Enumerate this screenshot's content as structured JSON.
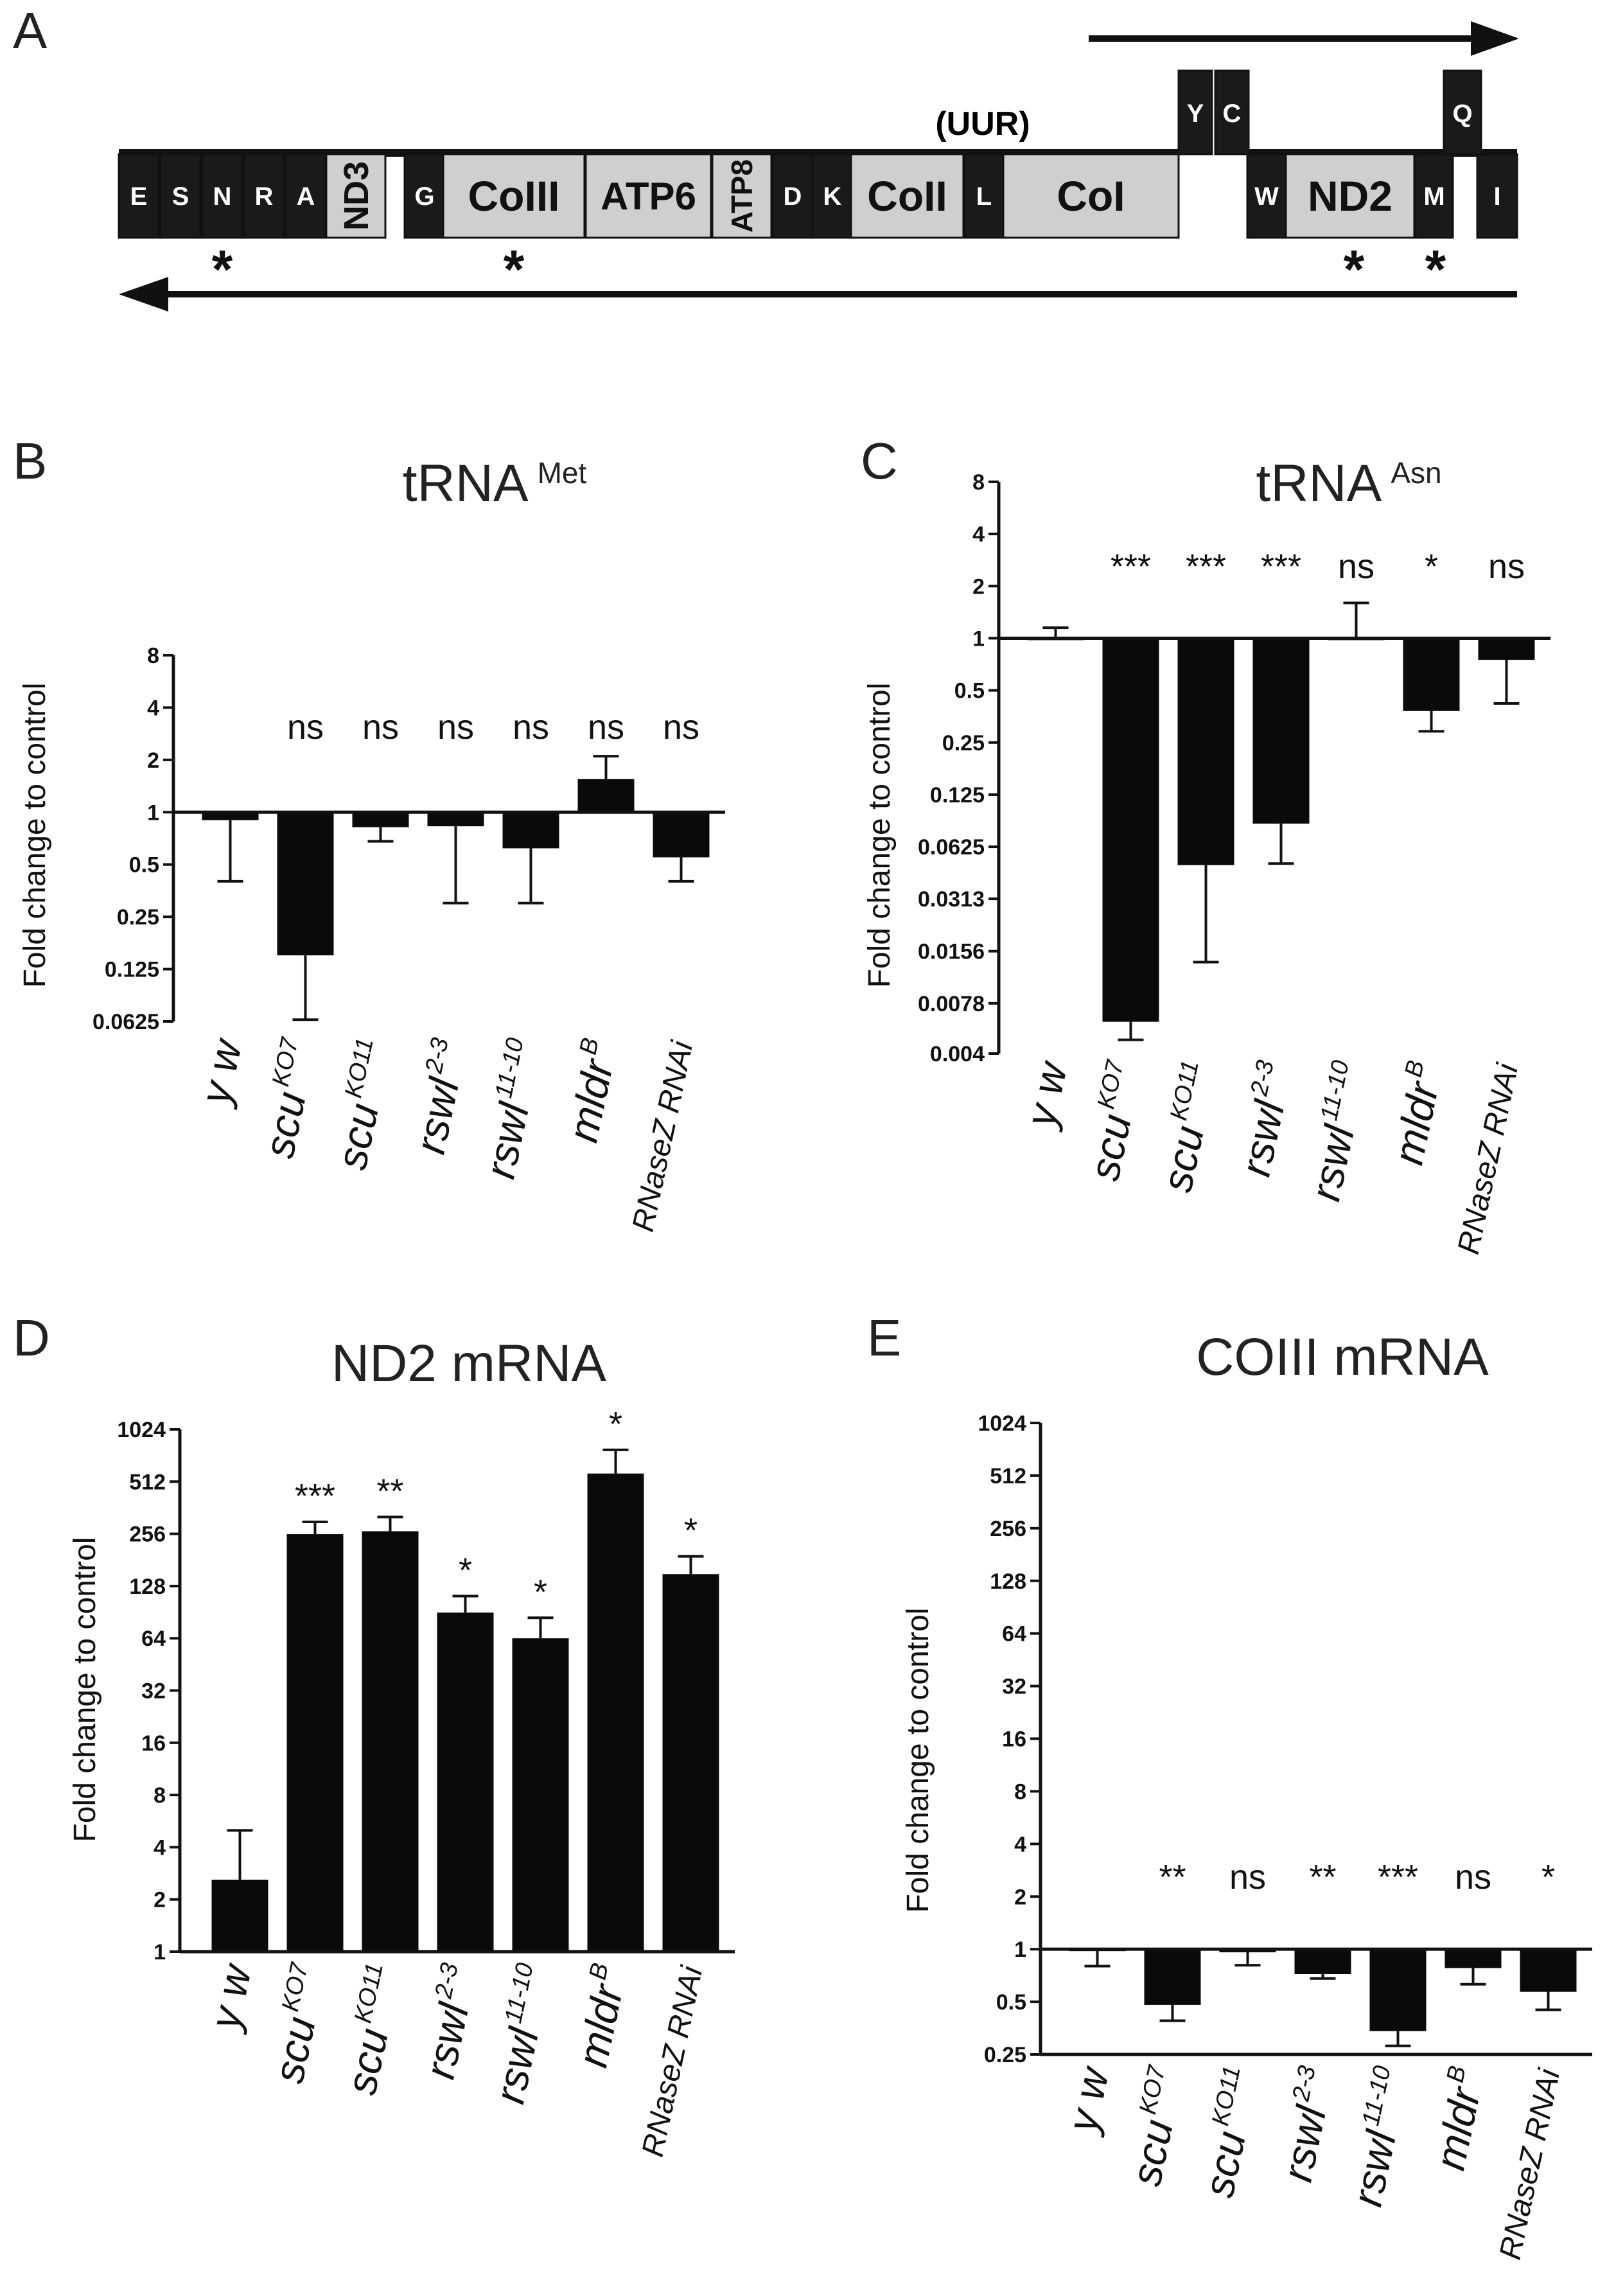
{
  "panel_labels": [
    "A",
    "B",
    "C",
    "D",
    "E"
  ],
  "gene_map": {
    "uur_label": "(UUR)",
    "top_strand_genes": [
      {
        "label": "Y"
      },
      {
        "label": "C"
      },
      {
        "label": "Q"
      }
    ],
    "main_genes": [
      {
        "label": "E",
        "kind": "tRNA"
      },
      {
        "label": "S",
        "kind": "tRNA"
      },
      {
        "label": "N",
        "kind": "tRNA"
      },
      {
        "label": "R",
        "kind": "tRNA"
      },
      {
        "label": "A",
        "kind": "tRNA"
      },
      {
        "label": "ND3",
        "kind": "gene"
      },
      {
        "label": "G",
        "kind": "tRNA"
      },
      {
        "label": "CoIII",
        "kind": "gene"
      },
      {
        "label": "ATP6",
        "kind": "gene"
      },
      {
        "label": "ATP8",
        "kind": "gene"
      },
      {
        "label": "D",
        "kind": "tRNA"
      },
      {
        "label": "K",
        "kind": "tRNA"
      },
      {
        "label": "CoII",
        "kind": "gene"
      },
      {
        "label": "L",
        "kind": "tRNA"
      },
      {
        "label": "CoI",
        "kind": "gene"
      },
      {
        "label": "W",
        "kind": "tRNA"
      },
      {
        "label": "ND2",
        "kind": "gene"
      },
      {
        "label": "M",
        "kind": "tRNA"
      },
      {
        "label": "I",
        "kind": "tRNA"
      }
    ],
    "star_symbol": "*",
    "marked_genes": [
      "N",
      "CoIII",
      "ND2",
      "M"
    ]
  },
  "y_axis_label": "Fold change to control",
  "chart_data": [
    {
      "panel": "B",
      "type": "bar",
      "title": "tRNA",
      "title_sup": "Met",
      "ylabel": "Fold change to control",
      "yscale": "log2",
      "ylim": [
        0.0625,
        8
      ],
      "yticks": [
        "8",
        "4",
        "2",
        "1",
        "0.5",
        "0.25",
        "0.125",
        "0.0625"
      ],
      "categories": [
        "y w",
        "scu KO7",
        "scu KO11",
        "rswl 2-3",
        "rswl 11-10",
        "mldr B",
        "RNaseZ RNAi"
      ],
      "values": [
        0.9,
        0.15,
        0.82,
        0.83,
        0.62,
        1.55,
        0.55
      ],
      "errors": [
        0.4,
        0.064,
        0.68,
        0.3,
        0.3,
        2.1,
        0.4
      ],
      "significance": [
        "",
        "ns",
        "ns",
        "ns",
        "ns",
        "ns",
        "ns"
      ]
    },
    {
      "panel": "C",
      "type": "bar",
      "title": "tRNA",
      "title_sup": "Asn",
      "ylabel": "Fold change to control",
      "yscale": "log2",
      "ylim": [
        0.004,
        8
      ],
      "yticks": [
        "8",
        "4",
        "2",
        "1",
        "0.5",
        "0.25",
        "0.125",
        "0.0625",
        "0.0313",
        "0.0156",
        "0.0078",
        "0.004"
      ],
      "categories": [
        "y w",
        "scu KO7",
        "scu KO11",
        "rswl 2-3",
        "rswl 11-10",
        "mldr B",
        "RNaseZ RNAi"
      ],
      "values": [
        1.0,
        0.0061,
        0.049,
        0.085,
        1.0,
        0.38,
        0.75
      ],
      "errors": [
        1.15,
        0.0048,
        0.0135,
        0.05,
        1.6,
        0.29,
        0.42
      ],
      "significance": [
        "",
        "***",
        "***",
        "***",
        "ns",
        "*",
        "ns"
      ]
    },
    {
      "panel": "D",
      "type": "bar",
      "title": "ND2 mRNA",
      "title_sup": "",
      "ylabel": "Fold change to control",
      "yscale": "log2",
      "ylim": [
        1,
        1024
      ],
      "yticks": [
        "1024",
        "512",
        "256",
        "128",
        "64",
        "32",
        "16",
        "8",
        "4",
        "2",
        "1"
      ],
      "categories": [
        "y w",
        "scu KO7",
        "scu KO11",
        "rswl 2-3",
        "rswl 11-10",
        "mldr B",
        "RNaseZ RNAi"
      ],
      "values": [
        2.6,
        255,
        265,
        90,
        64,
        570,
        150
      ],
      "errors": [
        5,
        300,
        320,
        112,
        84,
        780,
        190
      ],
      "significance": [
        "",
        "***",
        "**",
        "*",
        "*",
        "*",
        "*"
      ]
    },
    {
      "panel": "E",
      "type": "bar",
      "title": "COIII mRNA",
      "title_sup": "",
      "ylabel": "Fold change to control",
      "yscale": "log2",
      "ylim": [
        0.25,
        1024
      ],
      "yticks": [
        "1024",
        "512",
        "256",
        "128",
        "64",
        "32",
        "16",
        "8",
        "4",
        "2",
        "1",
        "0.5",
        "0.25"
      ],
      "categories": [
        "y w",
        "scu KO7",
        "scu KO11",
        "rswl 2-3",
        "rswl 11-10",
        "mldr B",
        "RNaseZ RNAi"
      ],
      "values": [
        1.0,
        0.48,
        0.96,
        0.72,
        0.34,
        0.78,
        0.57
      ],
      "errors": [
        0.8,
        0.39,
        0.81,
        0.68,
        0.28,
        0.63,
        0.45
      ],
      "significance": [
        "",
        "**",
        "ns",
        "**",
        "***",
        "ns",
        "*"
      ]
    }
  ],
  "x_labels": [
    {
      "base": "y w",
      "sup": "",
      "small": false
    },
    {
      "base": "scu",
      "sup": "KO7",
      "small": false
    },
    {
      "base": "scu",
      "sup": "KO11",
      "small": false
    },
    {
      "base": "rswl",
      "sup": "2-3",
      "small": false
    },
    {
      "base": "rswl",
      "sup": "11-10",
      "small": false
    },
    {
      "base": "mldr",
      "sup": "B",
      "small": false
    },
    {
      "base": "RNaseZ RNAi",
      "sup": "",
      "small": true
    }
  ]
}
